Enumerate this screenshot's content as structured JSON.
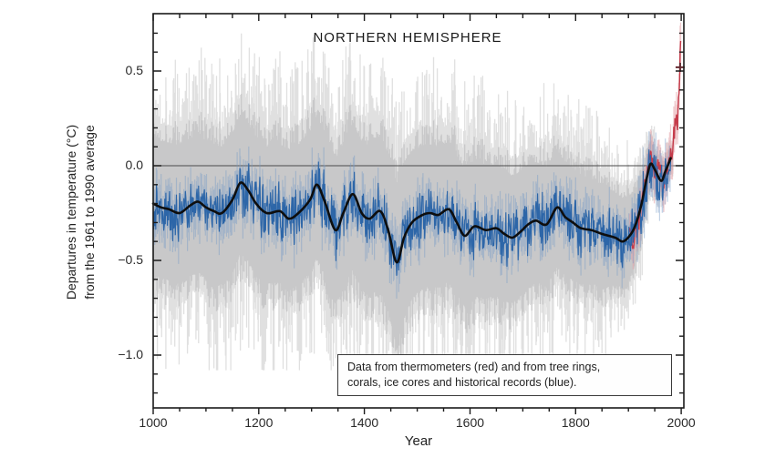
{
  "page": {
    "background": "#ffffff"
  },
  "header": {
    "title": "NORTHERN HEMISPHERE"
  },
  "axis": {
    "y_label_line1": "Departures in temperature (°C)",
    "y_label_line2": "from the 1961 to 1990 average",
    "x_label": "Year"
  },
  "annotation_box": {
    "line1": "Data from thermometers (red) and from tree rings,",
    "line2": "corals, ice cores and historical records (blue)."
  },
  "chart_data": {
    "type": "line",
    "title": "NORTHERN HEMISPHERE",
    "xlabel": "Year",
    "ylabel": "Departures in temperature (°C) from the 1961 to 1990 average",
    "xlim": [
      1000,
      2005
    ],
    "ylim": [
      -1.28,
      0.8
    ],
    "grid": false,
    "legend_position": "none",
    "zero_line": 0.0,
    "x_ticks": [
      {
        "value": 1000,
        "label": "1000"
      },
      {
        "value": 1200,
        "label": "1200"
      },
      {
        "value": 1400,
        "label": "1400"
      },
      {
        "value": 1600,
        "label": "1600"
      },
      {
        "value": 1800,
        "label": "1800"
      },
      {
        "value": 2000,
        "label": "2000"
      }
    ],
    "y_ticks": [
      {
        "value": 0.5,
        "label": "0.5"
      },
      {
        "value": 0.0,
        "label": "0.0"
      },
      {
        "value": -0.5,
        "label": "−0.5"
      },
      {
        "value": -1.0,
        "label": "−1.0"
      }
    ],
    "x_minor_tick_step": 50,
    "y_minor_tick_step": 0.1,
    "colors": {
      "proxy_blue": "#2d66a8",
      "blue_fuzz": "rgba(120,155,200,0.45)",
      "instrumental_red": "#c43b4a",
      "red_band": "rgba(228,160,165,0.55)",
      "smoothed_black": "#0e0e0e",
      "confidence_gray_inner": "rgba(197,197,199,0.9)",
      "confidence_gray_outer": "rgba(213,213,214,0.75)",
      "zero_line": "#4a4a4a",
      "frame": "#1a1a1a"
    },
    "series": [
      {
        "name": "smoothed_40yr_black",
        "description": "40-year smoothed NH temperature reconstruction (black line)",
        "x": [
          1000,
          1015,
          1030,
          1050,
          1070,
          1085,
          1100,
          1115,
          1130,
          1150,
          1165,
          1180,
          1195,
          1215,
          1240,
          1257,
          1275,
          1297,
          1310,
          1325,
          1345,
          1360,
          1378,
          1395,
          1410,
          1430,
          1445,
          1461,
          1475,
          1490,
          1510,
          1525,
          1540,
          1560,
          1575,
          1590,
          1608,
          1630,
          1650,
          1665,
          1680,
          1695,
          1710,
          1725,
          1745,
          1765,
          1780,
          1795,
          1810,
          1830,
          1850,
          1875,
          1890,
          1905,
          1915,
          1925,
          1935,
          1942,
          1950,
          1962,
          1970,
          1980
        ],
        "values": [
          -0.2,
          -0.22,
          -0.23,
          -0.25,
          -0.21,
          -0.19,
          -0.22,
          -0.24,
          -0.25,
          -0.18,
          -0.09,
          -0.13,
          -0.2,
          -0.25,
          -0.24,
          -0.28,
          -0.25,
          -0.18,
          -0.1,
          -0.19,
          -0.34,
          -0.25,
          -0.15,
          -0.25,
          -0.28,
          -0.24,
          -0.34,
          -0.51,
          -0.38,
          -0.3,
          -0.26,
          -0.25,
          -0.26,
          -0.23,
          -0.3,
          -0.37,
          -0.32,
          -0.34,
          -0.33,
          -0.36,
          -0.38,
          -0.35,
          -0.31,
          -0.29,
          -0.31,
          -0.22,
          -0.27,
          -0.3,
          -0.33,
          -0.34,
          -0.36,
          -0.38,
          -0.4,
          -0.36,
          -0.3,
          -0.2,
          -0.06,
          0.01,
          -0.02,
          -0.08,
          -0.03,
          0.04
        ]
      },
      {
        "name": "instrumental_red",
        "description": "Annual data from thermometers (red line), 1902-1999",
        "range": [
          1902,
          1999
        ],
        "annual_noise": 0.05,
        "x": [
          1902,
          1907,
          1912,
          1917,
          1922,
          1927,
          1932,
          1937,
          1942,
          1947,
          1952,
          1957,
          1962,
          1967,
          1972,
          1977,
          1982,
          1987,
          1990,
          1993,
          1995,
          1997,
          1998,
          1999
        ],
        "values": [
          -0.32,
          -0.4,
          -0.38,
          -0.35,
          -0.25,
          -0.18,
          -0.1,
          -0.02,
          0.05,
          -0.02,
          -0.03,
          0.0,
          -0.05,
          -0.08,
          -0.05,
          0.02,
          0.08,
          0.18,
          0.25,
          0.22,
          0.35,
          0.44,
          0.56,
          0.66
        ]
      },
      {
        "name": "proxy_annual_blue",
        "description": "Annual proxy data from tree rings, corals, ice cores and historical records (blue line)",
        "derived_from": "smoothed_40yr_black",
        "annual_noise": 0.13,
        "range": [
          1000,
          1980
        ]
      },
      {
        "name": "confidence_band_95pct",
        "description": "Gray 95% confidence range around the reconstruction",
        "x": [
          1000,
          1200,
          1350,
          1420,
          1460,
          1500,
          1600,
          1700,
          1800,
          1850,
          1900,
          1920,
          1940,
          1960,
          1980
        ],
        "halfwidth": [
          0.42,
          0.42,
          0.44,
          0.46,
          0.5,
          0.44,
          0.42,
          0.38,
          0.34,
          0.31,
          0.26,
          0.2,
          0.13,
          0.09,
          0.06
        ],
        "spike_up": 0.4,
        "spike_down": 0.45
      }
    ],
    "marker_1998": {
      "x": 1998,
      "y": 0.52,
      "symbol": "+"
    },
    "annotation": "Data from thermometers (red) and from tree rings, corals, ice cores and historical records (blue)."
  }
}
